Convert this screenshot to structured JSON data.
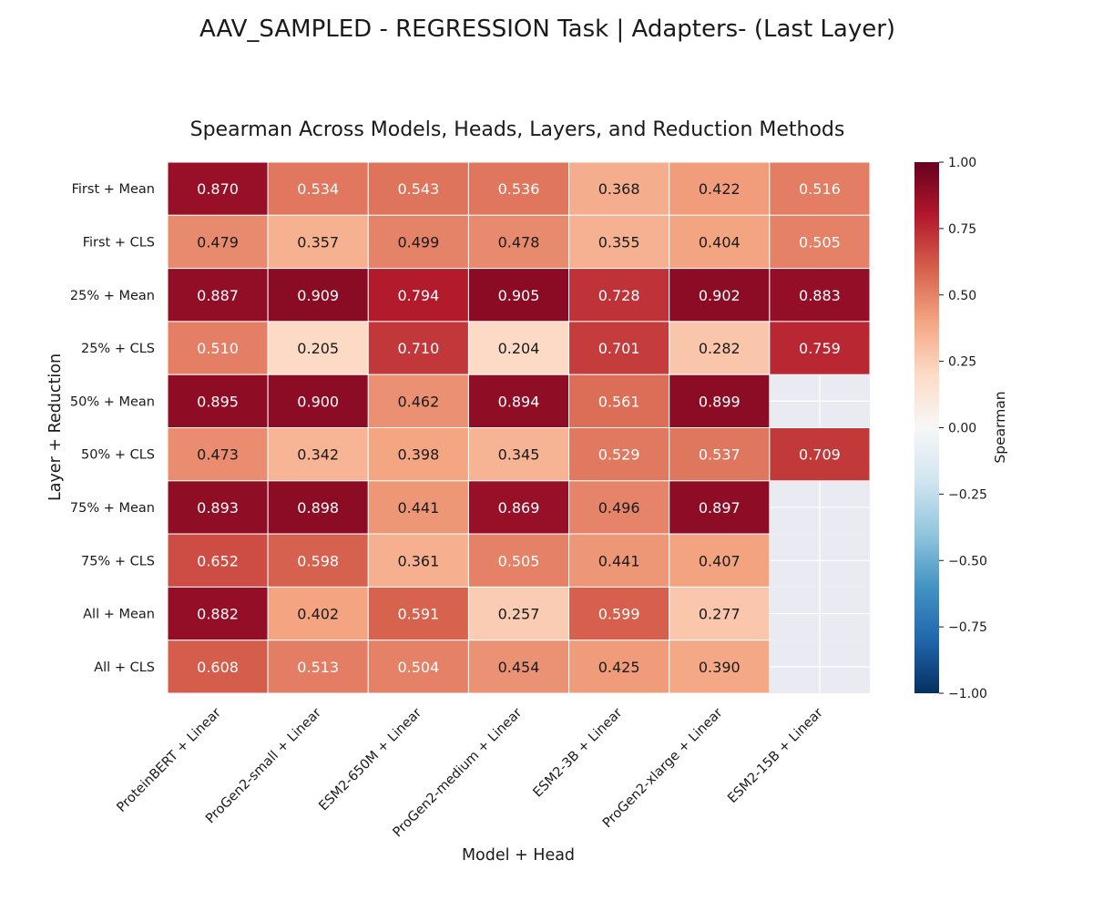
{
  "suptitle": "AAV_SAMPLED - REGRESSION Task | Adapters- (Last Layer)",
  "chart_data": {
    "type": "heatmap",
    "title": "Spearman Across Models, Heads, Layers, and Reduction Methods",
    "xlabel": "Model + Head",
    "ylabel": "Layer + Reduction",
    "colorbar_label": "Spearman",
    "colormap": "RdBu_r",
    "vmin": -1.0,
    "vmax": 1.0,
    "colorbar_ticks": [
      "1.00",
      "0.75",
      "0.50",
      "0.25",
      "0.00",
      "−0.25",
      "−0.50",
      "−0.75",
      "−1.00"
    ],
    "columns": [
      "ProteinBERT + Linear",
      "ProGen2-small + Linear",
      "ESM2-650M + Linear",
      "ProGen2-medium + Linear",
      "ESM2-3B + Linear",
      "ProGen2-xlarge + Linear",
      "ESM2-15B + Linear"
    ],
    "rows": [
      "First + Mean",
      "First + CLS",
      "25% + Mean",
      "25% + CLS",
      "50% + Mean",
      "50% + CLS",
      "75% + Mean",
      "75% + CLS",
      "All + Mean",
      "All + CLS"
    ],
    "values": [
      [
        0.87,
        0.534,
        0.543,
        0.536,
        0.368,
        0.422,
        0.516
      ],
      [
        0.479,
        0.357,
        0.499,
        0.478,
        0.355,
        0.404,
        0.505
      ],
      [
        0.887,
        0.909,
        0.794,
        0.905,
        0.728,
        0.902,
        0.883
      ],
      [
        0.51,
        0.205,
        0.71,
        0.204,
        0.701,
        0.282,
        0.759
      ],
      [
        0.895,
        0.9,
        0.462,
        0.894,
        0.561,
        0.899,
        null
      ],
      [
        0.473,
        0.342,
        0.398,
        0.345,
        0.529,
        0.537,
        0.709
      ],
      [
        0.893,
        0.898,
        0.441,
        0.869,
        0.496,
        0.897,
        null
      ],
      [
        0.652,
        0.598,
        0.361,
        0.505,
        0.441,
        0.407,
        null
      ],
      [
        0.882,
        0.402,
        0.591,
        0.257,
        0.599,
        0.277,
        null
      ],
      [
        0.608,
        0.513,
        0.504,
        0.454,
        0.425,
        0.39,
        null
      ]
    ],
    "missing_color": "#eaeaf2",
    "grid": false
  }
}
